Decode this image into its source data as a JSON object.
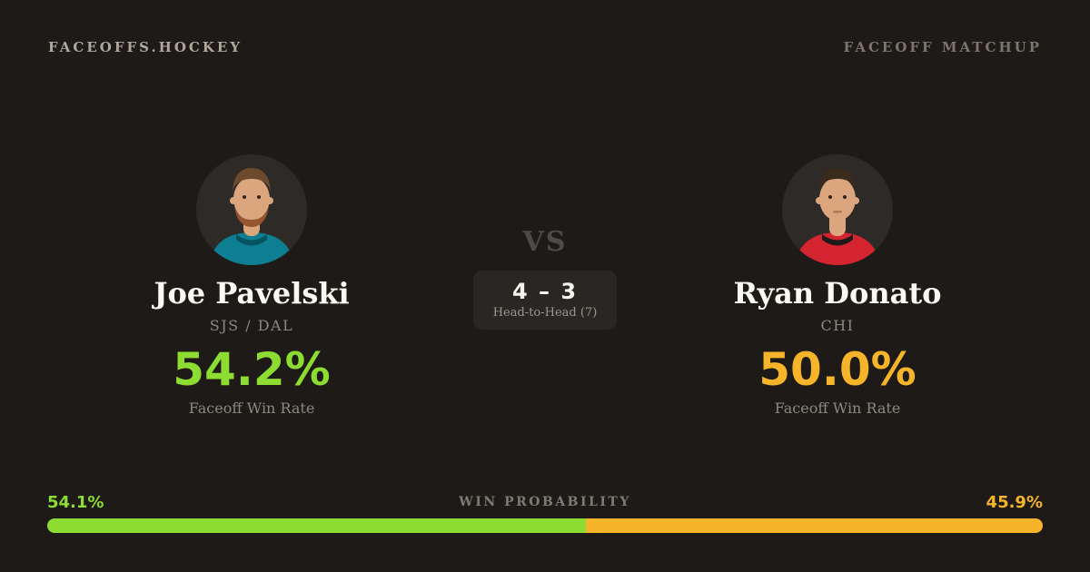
{
  "header": {
    "brand": "FACEOFFS.HOCKEY",
    "page_label": "FACEOFF MATCHUP"
  },
  "players": [
    {
      "name": "Joe Pavelski",
      "teams": "SJS / DAL",
      "faceoff_win_rate": "54.2%",
      "rate_label": "Faceoff Win Rate",
      "accent_color": "#8cdc32",
      "avatar": {
        "icon": "player-portrait-icon",
        "jersey_color": "#0e7f93",
        "jersey_trim_color": "#06525f",
        "hair_color": "#6e4a2d",
        "beard_color": "#95552e",
        "skin_color": "#dba57e"
      }
    },
    {
      "name": "Ryan Donato",
      "teams": "CHI",
      "faceoff_win_rate": "50.0%",
      "rate_label": "Faceoff Win Rate",
      "accent_color": "#f5b42a",
      "avatar": {
        "icon": "player-portrait-icon",
        "jersey_color": "#d32430",
        "jersey_trim_color": "#1d1b19",
        "hair_color": "#3b2b1d",
        "beard_color": "none",
        "skin_color": "#dba57e"
      }
    }
  ],
  "versus": {
    "label": "VS",
    "head_to_head_score": "4 – 3",
    "head_to_head_label": "Head-to-Head (7)"
  },
  "win_probability": {
    "title": "WIN PROBABILITY",
    "left_label": "54.1%",
    "right_label": "45.9%",
    "left_pct": 54.1,
    "right_pct": 45.9,
    "left_color": "#8cdc32",
    "right_color": "#f5b42a"
  },
  "colors": {
    "background": "#1e1a17",
    "panel": "#2a2623",
    "avatar_background": "#2e2a27",
    "text_primary": "#f7f3ec",
    "text_muted": "#8d8780"
  }
}
